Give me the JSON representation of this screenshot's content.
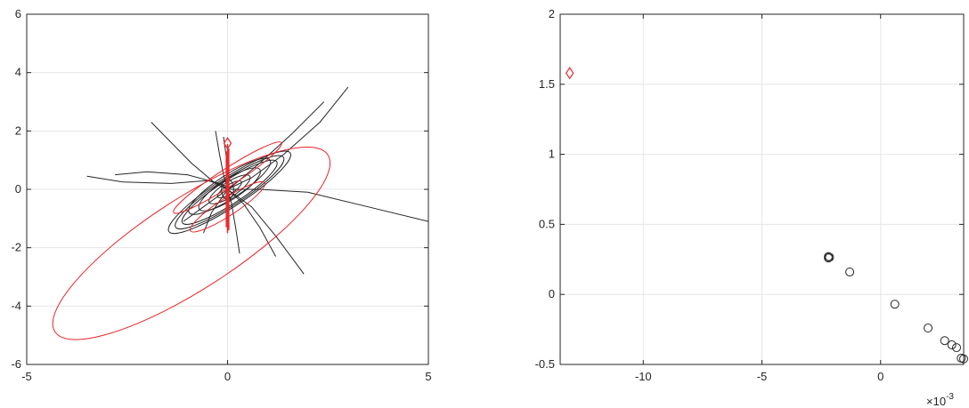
{
  "chart_data": [
    {
      "type": "line",
      "xlim": [
        -5,
        5
      ],
      "ylim": [
        -6,
        6
      ],
      "xticks": [
        -5,
        0,
        5
      ],
      "yticks": [
        -6,
        -4,
        -2,
        0,
        2,
        4,
        6
      ],
      "xtick_labels": [
        "-5",
        "0",
        "5"
      ],
      "ytick_labels": [
        "-6",
        "-4",
        "-2",
        "0",
        "2",
        "4",
        "6"
      ],
      "grid": true,
      "colors": {
        "trajectories": "#262626",
        "ellipses": "#e8262a"
      },
      "trajectories": [
        [
          [
            -3.5,
            0.45
          ],
          [
            -2.6,
            0.25
          ],
          [
            -1.4,
            0.2
          ],
          [
            -0.5,
            0.3
          ],
          [
            0.0,
            0.1
          ]
        ],
        [
          [
            -2.8,
            0.5
          ],
          [
            -2.0,
            0.6
          ],
          [
            -1.0,
            0.5
          ],
          [
            -0.2,
            0.2
          ],
          [
            0.0,
            0.0
          ]
        ],
        [
          [
            -1.9,
            2.3
          ],
          [
            -1.4,
            1.6
          ],
          [
            -0.9,
            0.9
          ],
          [
            -0.3,
            0.2
          ],
          [
            0.0,
            0.0
          ]
        ],
        [
          [
            -0.3,
            2.0
          ],
          [
            -0.2,
            1.2
          ],
          [
            -0.1,
            0.5
          ],
          [
            0.0,
            0.0
          ]
        ],
        [
          [
            3.0,
            3.5
          ],
          [
            2.3,
            2.3
          ],
          [
            1.4,
            1.2
          ],
          [
            0.6,
            0.4
          ],
          [
            0.0,
            0.0
          ]
        ],
        [
          [
            2.4,
            3.0
          ],
          [
            1.6,
            1.9
          ],
          [
            0.8,
            0.9
          ],
          [
            0.2,
            0.2
          ],
          [
            0.0,
            0.0
          ]
        ],
        [
          [
            5.0,
            -1.1
          ],
          [
            3.5,
            -0.6
          ],
          [
            2.0,
            -0.1
          ],
          [
            0.8,
            0.0
          ],
          [
            0.0,
            0.0
          ]
        ],
        [
          [
            1.9,
            -2.9
          ],
          [
            1.2,
            -1.6
          ],
          [
            0.6,
            -0.6
          ],
          [
            0.0,
            0.0
          ]
        ],
        [
          [
            1.2,
            -2.3
          ],
          [
            0.8,
            -1.3
          ],
          [
            0.4,
            -0.5
          ],
          [
            0.0,
            0.0
          ]
        ],
        [
          [
            0.3,
            -2.2
          ],
          [
            0.2,
            -1.3
          ],
          [
            0.1,
            -0.5
          ],
          [
            0.0,
            0.0
          ]
        ],
        [
          [
            -1.1,
            -1.1
          ],
          [
            -0.6,
            -0.6
          ],
          [
            -0.2,
            -0.2
          ],
          [
            0.0,
            0.0
          ]
        ],
        [
          [
            -0.6,
            -1.5
          ],
          [
            -0.4,
            -0.8
          ],
          [
            -0.1,
            -0.2
          ],
          [
            0.0,
            0.0
          ]
        ],
        [
          [
            -0.1,
            1.8
          ],
          [
            0.0,
            0.8
          ],
          [
            0.0,
            0.0
          ]
        ]
      ],
      "black_ellipses": [
        {
          "cx": 0.05,
          "cy": -0.1,
          "a": 1.8,
          "b": 0.5,
          "angle_deg": 33
        },
        {
          "cx": 0.05,
          "cy": -0.1,
          "a": 1.6,
          "b": 0.45,
          "angle_deg": 33
        },
        {
          "cx": 0.05,
          "cy": -0.1,
          "a": 1.4,
          "b": 0.4,
          "angle_deg": 33
        },
        {
          "cx": 0.05,
          "cy": 0.1,
          "a": 1.2,
          "b": 0.4,
          "angle_deg": 33
        },
        {
          "cx": 0.05,
          "cy": 0.0,
          "a": 0.9,
          "b": 0.35,
          "angle_deg": 33
        },
        {
          "cx": 0.05,
          "cy": 0.0,
          "a": 0.6,
          "b": 0.25,
          "angle_deg": 33
        },
        {
          "cx": 0.05,
          "cy": 0.0,
          "a": 0.35,
          "b": 0.15,
          "angle_deg": 33
        },
        {
          "cx": 0.0,
          "cy": 0.0,
          "a": 0.15,
          "b": 0.35,
          "angle_deg": 0
        }
      ],
      "red_ellipses": [
        {
          "cx": -0.9,
          "cy": -1.85,
          "a": 4.05,
          "b": 1.55,
          "angle_deg": 33
        },
        {
          "cx": 0.0,
          "cy": 0.4,
          "a": 1.6,
          "b": 0.3,
          "angle_deg": 33
        },
        {
          "cx": 0.0,
          "cy": -0.6,
          "a": 1.1,
          "b": 0.3,
          "angle_deg": 33
        }
      ],
      "red_vertical_segments": [
        {
          "x": 0.0,
          "y0": -1.5,
          "y1": 1.55
        },
        {
          "x": 0.03,
          "y0": -1.4,
          "y1": 1.4
        },
        {
          "x": -0.03,
          "y0": -1.3,
          "y1": 1.3
        }
      ],
      "red_diamond_points": [
        [
          0.0,
          1.58
        ]
      ]
    },
    {
      "type": "scatter",
      "xlim": [
        -0.0135,
        0.0035
      ],
      "ylim": [
        -0.5,
        2
      ],
      "xticks": [
        -0.01,
        -0.005,
        0
      ],
      "yticks": [
        -0.5,
        0,
        0.5,
        1,
        1.5,
        2
      ],
      "xtick_labels": [
        "-10",
        "-5",
        "0"
      ],
      "ytick_labels": [
        "-0.5",
        "0",
        "0.5",
        "1",
        "1.5",
        "2"
      ],
      "exponent_label": "×10",
      "exponent_power": "-3",
      "grid": true,
      "colors": {
        "circles": "#262626",
        "diamond": "#e8262a"
      },
      "circle_points": [
        [
          -0.0022,
          0.27
        ],
        [
          -0.0022,
          0.26
        ],
        [
          -0.00215,
          0.265
        ],
        [
          -0.0013,
          0.16
        ],
        [
          0.0006,
          -0.07
        ],
        [
          0.002,
          -0.24
        ],
        [
          0.0027,
          -0.33
        ],
        [
          0.003,
          -0.36
        ],
        [
          0.0032,
          -0.38
        ],
        [
          0.0034,
          -0.455
        ],
        [
          0.0035,
          -0.46
        ]
      ],
      "diamond_points": [
        [
          -0.0131,
          1.58
        ]
      ]
    }
  ]
}
